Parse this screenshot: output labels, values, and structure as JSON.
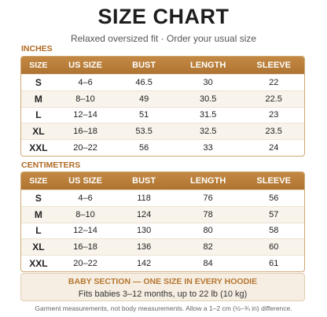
{
  "title": "SIZE CHART",
  "subtitle": "Relaxed oversized fit · Order your usual size",
  "tables": [
    {
      "label": "INCHES",
      "headers": [
        "SIZE",
        "US SIZE",
        "BUST",
        "LENGTH",
        "SLEEVE"
      ],
      "rows": [
        [
          "S",
          "4–6",
          "46.5",
          "30",
          "22"
        ],
        [
          "M",
          "8–10",
          "49",
          "30.5",
          "22.5"
        ],
        [
          "L",
          "12–14",
          "51",
          "31.5",
          "23"
        ],
        [
          "XL",
          "16–18",
          "53.5",
          "32.5",
          "23.5"
        ],
        [
          "XXL",
          "20–22",
          "56",
          "33",
          "24"
        ]
      ]
    },
    {
      "label": "CENTIMETERS",
      "headers": [
        "SIZE",
        "US SIZE",
        "BUST",
        "LENGTH",
        "SLEEVE"
      ],
      "rows": [
        [
          "S",
          "4–6",
          "118",
          "76",
          "56"
        ],
        [
          "M",
          "8–10",
          "124",
          "78",
          "57"
        ],
        [
          "L",
          "12–14",
          "130",
          "80",
          "58"
        ],
        [
          "XL",
          "16–18",
          "136",
          "82",
          "60"
        ],
        [
          "XXL",
          "20–22",
          "142",
          "84",
          "61"
        ]
      ]
    }
  ],
  "baby": {
    "heading": "BABY SECTION — ONE SIZE IN EVERY HOODIE",
    "text": "Fits babies 3–12 months, up to 22 lb (10 kg)"
  },
  "footnote": "Garment measurements, not body measurements. Allow a 1–2 cm (½–¾ in) difference."
}
